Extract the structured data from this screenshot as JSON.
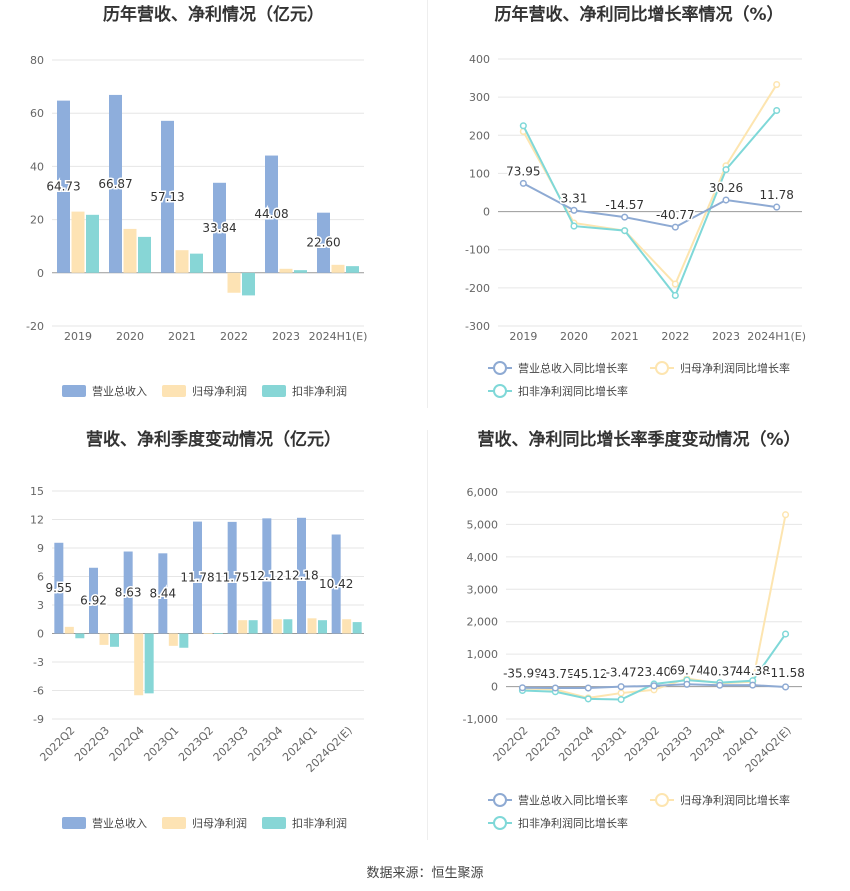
{
  "colors": {
    "revenue": "#8eaedc",
    "net_profit": "#fde3b4",
    "deducted_profit": "#87d6d6",
    "rev_line": "#8eaad3",
    "np_line": "#fde5b0",
    "dp_line": "#7fd8d8"
  },
  "legend": {
    "bar": [
      "营业总收入",
      "归母净利润",
      "扣非净利润"
    ],
    "line": [
      "营业总收入同比增长率",
      "归母净利润同比增长率",
      "扣非净利润同比增长率"
    ]
  },
  "footer": "数据来源：恒生聚源",
  "chart_data": [
    {
      "type": "bar",
      "title": "历年营收、净利情况（亿元）",
      "categories": [
        "2019",
        "2020",
        "2021",
        "2022",
        "2023",
        "2024H1(E)"
      ],
      "series": [
        {
          "name": "营业总收入",
          "values": [
            64.73,
            66.87,
            57.13,
            33.84,
            44.08,
            22.6
          ]
        },
        {
          "name": "归母净利润",
          "values": [
            23.0,
            16.5,
            8.5,
            -7.5,
            1.5,
            3.0
          ]
        },
        {
          "name": "扣非净利润",
          "values": [
            21.8,
            13.5,
            7.2,
            -8.5,
            1.0,
            2.5
          ]
        }
      ],
      "data_labels": [
        "64.73",
        "66.87",
        "57.13",
        "33.84",
        "44.08",
        "22.60"
      ],
      "ylim": [
        -20,
        80
      ],
      "yticks": [
        -20,
        0,
        20,
        40,
        60,
        80
      ],
      "legend_position": "bottom"
    },
    {
      "type": "line",
      "title": "历年营收、净利同比增长率情况（%）",
      "categories": [
        "2019",
        "2020",
        "2021",
        "2022",
        "2023",
        "2024H1(E)"
      ],
      "series": [
        {
          "name": "营业总收入同比增长率",
          "values": [
            73.95,
            3.31,
            -14.57,
            -40.77,
            30.26,
            11.78
          ]
        },
        {
          "name": "归母净利润同比增长率",
          "values": [
            210,
            -30,
            -50,
            -190,
            120,
            333
          ]
        },
        {
          "name": "扣非净利润同比增长率",
          "values": [
            225,
            -38,
            -50,
            -220,
            110,
            265
          ]
        }
      ],
      "data_labels": [
        "73.95",
        "3.31",
        "-14.57",
        "-40.77",
        "30.26",
        "11.78"
      ],
      "ylim": [
        -300,
        400
      ],
      "yticks": [
        -300,
        -200,
        -100,
        0,
        100,
        200,
        300,
        400
      ],
      "legend_position": "bottom"
    },
    {
      "type": "bar",
      "title": "营收、净利季度变动情况（亿元）",
      "categories": [
        "2022Q2",
        "2022Q3",
        "2022Q4",
        "2023Q1",
        "2023Q2",
        "2023Q3",
        "2023Q4",
        "2024Q1",
        "2024Q2(E)"
      ],
      "series": [
        {
          "name": "营业总收入",
          "values": [
            9.55,
            6.92,
            8.63,
            8.44,
            11.78,
            11.75,
            12.12,
            12.18,
            10.42
          ]
        },
        {
          "name": "归母净利润",
          "values": [
            0.7,
            -1.2,
            -6.5,
            -1.3,
            0.05,
            1.4,
            1.5,
            1.6,
            1.5
          ]
        },
        {
          "name": "扣非净利润",
          "values": [
            -0.5,
            -1.4,
            -6.3,
            -1.5,
            0.05,
            1.4,
            1.5,
            1.4,
            1.2
          ]
        }
      ],
      "data_labels": [
        "9.55",
        "6.92",
        "8.63",
        "8.44",
        "11.78",
        "11.75",
        "12.12",
        "12.18",
        "10.42"
      ],
      "ylim": [
        -9,
        15
      ],
      "yticks": [
        -9,
        -6,
        -3,
        0,
        3,
        6,
        9,
        12,
        15
      ],
      "legend_position": "bottom"
    },
    {
      "type": "line",
      "title": "营收、净利同比增长率季度变动情况（%）",
      "categories": [
        "2022Q2",
        "2022Q3",
        "2022Q4",
        "2023Q1",
        "2023Q2",
        "2023Q3",
        "2023Q4",
        "2024Q1",
        "2024Q2(E)"
      ],
      "series": [
        {
          "name": "营业总收入同比增长率",
          "values": [
            -35.98,
            -43.75,
            -45.12,
            -3.47,
            23.4,
            69.74,
            40.37,
            44.38,
            -11.58
          ]
        },
        {
          "name": "归母净利润同比增长率",
          "values": [
            -60,
            -90,
            -350,
            -200,
            -100,
            250,
            100,
            150,
            5300
          ]
        },
        {
          "name": "扣非净利润同比增长率",
          "values": [
            -120,
            -160,
            -380,
            -400,
            80,
            200,
            120,
            180,
            1620
          ]
        }
      ],
      "data_labels": [
        "-35.98",
        "-43.75",
        "-45.12",
        "-3.47",
        "23.40",
        "69.74",
        "40.37",
        "44.38",
        "-11.58"
      ],
      "ylim": [
        -1000,
        6000
      ],
      "yticks": [
        "-1,000",
        "0",
        "1,000",
        "2,000",
        "3,000",
        "4,000",
        "5,000",
        "6,000"
      ],
      "legend_position": "bottom"
    }
  ]
}
